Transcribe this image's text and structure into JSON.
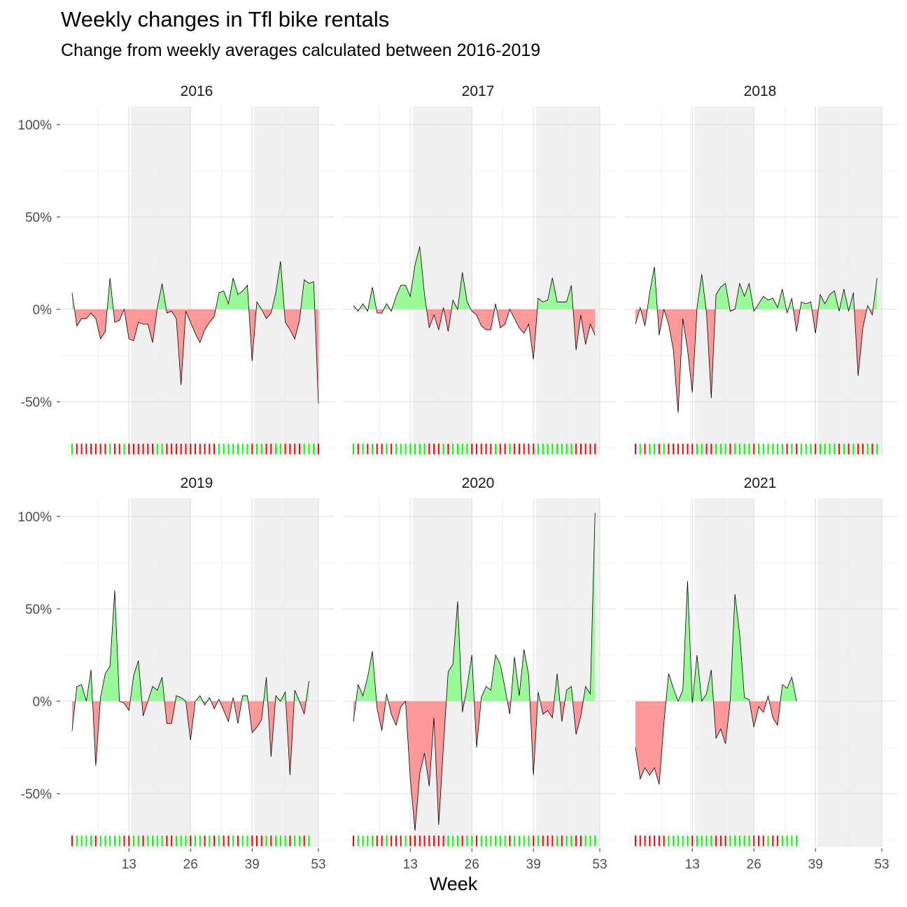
{
  "title": "Weekly changes in Tfl bike rentals",
  "subtitle": "Change from weekly averages calculated between 2016-2019",
  "chart_data": {
    "type": "area",
    "xlabel": "Week",
    "ylabel": "",
    "x_ticks": [
      13,
      26,
      39,
      53
    ],
    "x_range": [
      1,
      53
    ],
    "y_ticks": [
      -0.5,
      0,
      0.5,
      1.0
    ],
    "y_tick_labels": [
      "-50%",
      "0%",
      "50%",
      "100%"
    ],
    "y_range": [
      -0.78,
      1.1
    ],
    "shaded_week_ranges": [
      [
        14,
        26
      ],
      [
        40,
        53
      ]
    ],
    "grid": true,
    "colors": {
      "positive": "#98fb98",
      "negative": "#ff9999",
      "rug_positive": "#00ff00",
      "rug_negative": "#ff0000",
      "shade": "#f0f0f0"
    },
    "panels": [
      {
        "year": "2016",
        "values": [
          0.09,
          -0.09,
          -0.05,
          -0.05,
          -0.02,
          -0.05,
          -0.16,
          -0.12,
          0.17,
          -0.07,
          -0.06,
          0.0,
          -0.16,
          -0.17,
          -0.07,
          -0.08,
          -0.08,
          -0.18,
          0.01,
          0.14,
          -0.02,
          -0.01,
          -0.05,
          -0.41,
          -0.01,
          -0.07,
          -0.13,
          -0.18,
          -0.11,
          -0.07,
          -0.04,
          0.09,
          0.1,
          0.03,
          0.17,
          0.08,
          0.1,
          0.13,
          -0.28,
          0.04,
          0.0,
          -0.05,
          -0.02,
          0.09,
          0.26,
          -0.07,
          -0.11,
          -0.16,
          -0.06,
          0.16,
          0.14,
          0.15,
          -0.51
        ]
      },
      {
        "year": "2017",
        "values": [
          0.02,
          -0.01,
          0.03,
          -0.01,
          0.12,
          -0.02,
          -0.02,
          0.03,
          -0.01,
          0.07,
          0.13,
          0.13,
          0.07,
          0.24,
          0.34,
          0.08,
          -0.1,
          -0.03,
          -0.11,
          0.01,
          -0.12,
          0.05,
          0.0,
          0.2,
          0.04,
          -0.01,
          -0.03,
          -0.09,
          -0.11,
          -0.11,
          0.03,
          -0.1,
          -0.08,
          0.0,
          -0.05,
          -0.1,
          -0.13,
          -0.08,
          -0.27,
          0.06,
          0.04,
          0.05,
          0.17,
          0.04,
          0.04,
          0.04,
          0.13,
          -0.22,
          -0.03,
          -0.19,
          -0.08,
          -0.14
        ]
      },
      {
        "year": "2018",
        "values": [
          -0.08,
          0.01,
          -0.09,
          0.09,
          0.23,
          -0.14,
          0.0,
          -0.08,
          -0.22,
          -0.56,
          -0.05,
          -0.22,
          -0.45,
          0.01,
          0.19,
          -0.02,
          -0.48,
          0.08,
          0.12,
          0.14,
          -0.01,
          0.0,
          0.14,
          0.07,
          0.14,
          -0.01,
          0.03,
          0.07,
          0.05,
          0.06,
          0.01,
          0.11,
          -0.02,
          0.06,
          -0.12,
          0.04,
          0.03,
          0.04,
          -0.13,
          0.08,
          0.03,
          0.08,
          0.1,
          -0.01,
          0.11,
          -0.01,
          0.09,
          -0.36,
          -0.1,
          0.02,
          -0.03,
          0.17
        ]
      },
      {
        "year": "2019",
        "values": [
          -0.16,
          0.08,
          0.09,
          0.0,
          0.17,
          -0.35,
          0.02,
          0.15,
          0.19,
          0.6,
          0.0,
          -0.01,
          -0.05,
          0.14,
          0.22,
          -0.08,
          0.0,
          0.08,
          0.06,
          0.13,
          -0.12,
          -0.12,
          0.03,
          0.02,
          0.0,
          -0.21,
          0.0,
          0.03,
          -0.02,
          0.02,
          -0.04,
          0.01,
          -0.05,
          -0.11,
          0.02,
          -0.12,
          0.03,
          0.03,
          -0.17,
          -0.14,
          -0.1,
          0.13,
          -0.3,
          0.03,
          0.0,
          0.05,
          -0.4,
          0.06,
          0.0,
          -0.07,
          0.11
        ]
      },
      {
        "year": "2020",
        "values": [
          -0.11,
          0.09,
          0.03,
          0.13,
          0.27,
          -0.04,
          -0.16,
          0.04,
          -0.07,
          -0.13,
          -0.03,
          0.0,
          -0.42,
          -0.7,
          -0.39,
          -0.28,
          -0.46,
          -0.09,
          -0.67,
          -0.24,
          0.16,
          0.2,
          0.54,
          -0.06,
          0.08,
          0.25,
          -0.25,
          0.02,
          0.08,
          0.06,
          0.25,
          0.2,
          0.07,
          -0.07,
          0.24,
          0.03,
          0.28,
          0.14,
          -0.4,
          0.05,
          -0.07,
          -0.05,
          -0.09,
          0.15,
          -0.11,
          0.06,
          0.08,
          -0.18,
          -0.08,
          0.08,
          0.04,
          1.02
        ]
      },
      {
        "year": "2021",
        "values": [
          -0.25,
          -0.42,
          -0.36,
          -0.4,
          -0.36,
          -0.45,
          -0.12,
          0.15,
          0.07,
          0.0,
          0.06,
          0.65,
          -0.01,
          0.25,
          0.0,
          0.04,
          0.17,
          -0.2,
          -0.15,
          -0.23,
          0.0,
          0.58,
          0.36,
          0.02,
          0.01,
          -0.14,
          -0.03,
          -0.06,
          0.03,
          -0.09,
          -0.13,
          0.09,
          0.07,
          0.13,
          0.0
        ]
      }
    ]
  }
}
